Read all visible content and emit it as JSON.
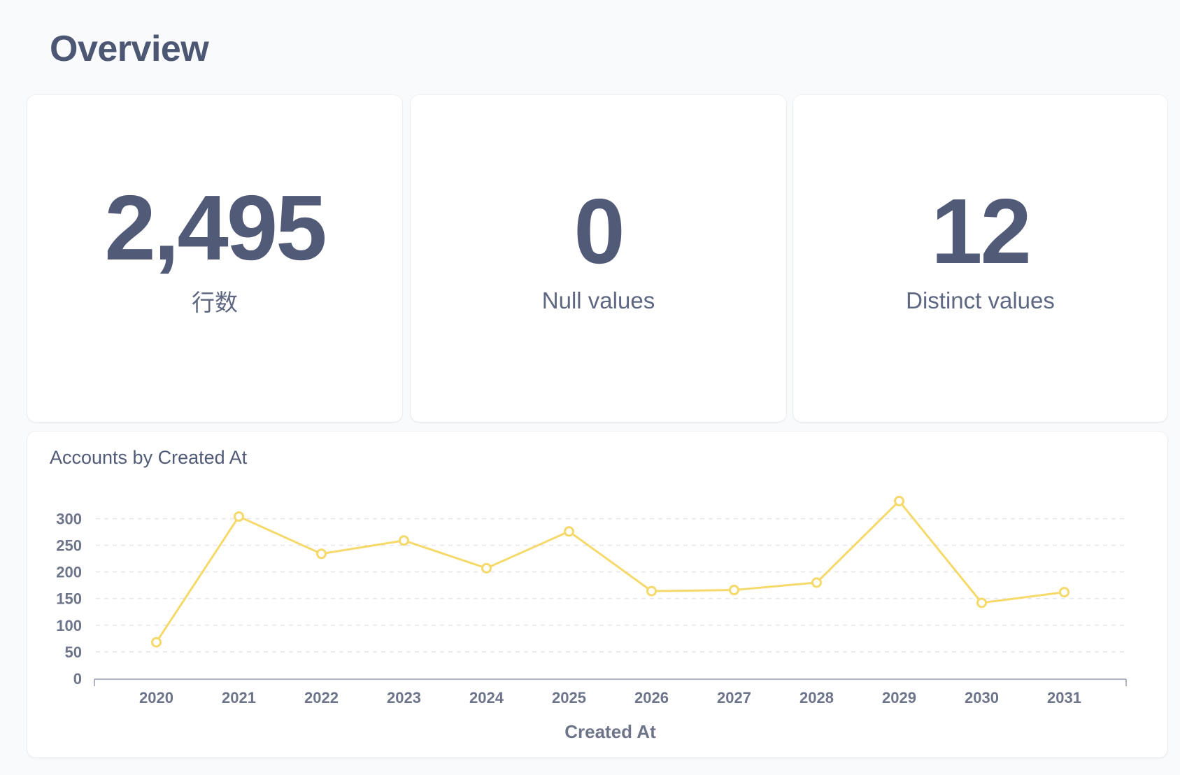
{
  "page": {
    "title": "Overview"
  },
  "stats": [
    {
      "value": "2,495",
      "label": "行数"
    },
    {
      "value": "0",
      "label": "Null values"
    },
    {
      "value": "12",
      "label": "Distinct values"
    }
  ],
  "colors": {
    "text": "#4c5773",
    "line": "#f5d96b",
    "grid": "#e4e6eb",
    "card": "#ffffff",
    "background": "#f9fafc"
  },
  "chart_data": {
    "type": "line",
    "title": "Accounts by Created At",
    "xlabel": "Created At",
    "ylabel": "",
    "categories": [
      "2020",
      "2021",
      "2022",
      "2023",
      "2024",
      "2025",
      "2026",
      "2027",
      "2028",
      "2029",
      "2030",
      "2031"
    ],
    "series": [
      {
        "values": [
          68,
          304,
          234,
          259,
          207,
          276,
          164,
          166,
          180,
          333,
          142,
          162
        ]
      }
    ],
    "yticks": [
      0,
      50,
      100,
      150,
      200,
      250,
      300
    ],
    "ylim": [
      0,
      333
    ],
    "grid": true,
    "legend": "none"
  }
}
